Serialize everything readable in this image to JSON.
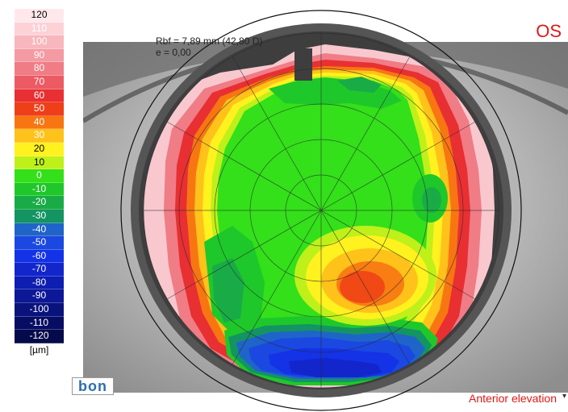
{
  "color_scale": {
    "items": [
      {
        "label": "120",
        "color": "#ffe8ec",
        "text": "#000000"
      },
      {
        "label": "110",
        "color": "#fcd2d7",
        "text": "#ffffff"
      },
      {
        "label": "100",
        "color": "#f8b6bd",
        "text": "#ffffff"
      },
      {
        "label": "90",
        "color": "#f49aa3",
        "text": "#ffffff"
      },
      {
        "label": "80",
        "color": "#f07c86",
        "text": "#ffffff"
      },
      {
        "label": "70",
        "color": "#ec5a64",
        "text": "#ffffff"
      },
      {
        "label": "60",
        "color": "#e82f32",
        "text": "#ffffff"
      },
      {
        "label": "50",
        "color": "#ee3f18",
        "text": "#ffffff"
      },
      {
        "label": "40",
        "color": "#f77612",
        "text": "#ffffff"
      },
      {
        "label": "30",
        "color": "#ffc21a",
        "text": "#ffffff"
      },
      {
        "label": "20",
        "color": "#fff21e",
        "text": "#000000"
      },
      {
        "label": "10",
        "color": "#bff01a",
        "text": "#000000"
      },
      {
        "label": "0",
        "color": "#33e01a",
        "text": "#ffffff"
      },
      {
        "label": "-10",
        "color": "#1ec82a",
        "text": "#ffffff"
      },
      {
        "label": "-20",
        "color": "#19ac46",
        "text": "#ffffff"
      },
      {
        "label": "-30",
        "color": "#139462",
        "text": "#ffffff"
      },
      {
        "label": "-40",
        "color": "#1f64c9",
        "text": "#ffffff"
      },
      {
        "label": "-50",
        "color": "#1a48e0",
        "text": "#ffffff"
      },
      {
        "label": "-60",
        "color": "#1432e6",
        "text": "#ffffff"
      },
      {
        "label": "-70",
        "color": "#1226cc",
        "text": "#ffffff"
      },
      {
        "label": "-80",
        "color": "#0e1eb0",
        "text": "#ffffff"
      },
      {
        "label": "-90",
        "color": "#0c1896",
        "text": "#ffffff"
      },
      {
        "label": "-100",
        "color": "#0a137c",
        "text": "#ffffff"
      },
      {
        "label": "-110",
        "color": "#070d62",
        "text": "#ffffff"
      },
      {
        "label": "-120",
        "color": "#050a4a",
        "text": "#ffffff"
      }
    ],
    "unit": "[µm]"
  },
  "map": {
    "rbf_text": "Rbf = 7,89 mm (42,80 D)",
    "e_text": "e = 0,00",
    "eye_label": "OS",
    "mode_label": "Anterior elevation"
  },
  "logo": {
    "text": "bon"
  },
  "icons": {
    "mode_dropdown": "caret-down-icon"
  }
}
